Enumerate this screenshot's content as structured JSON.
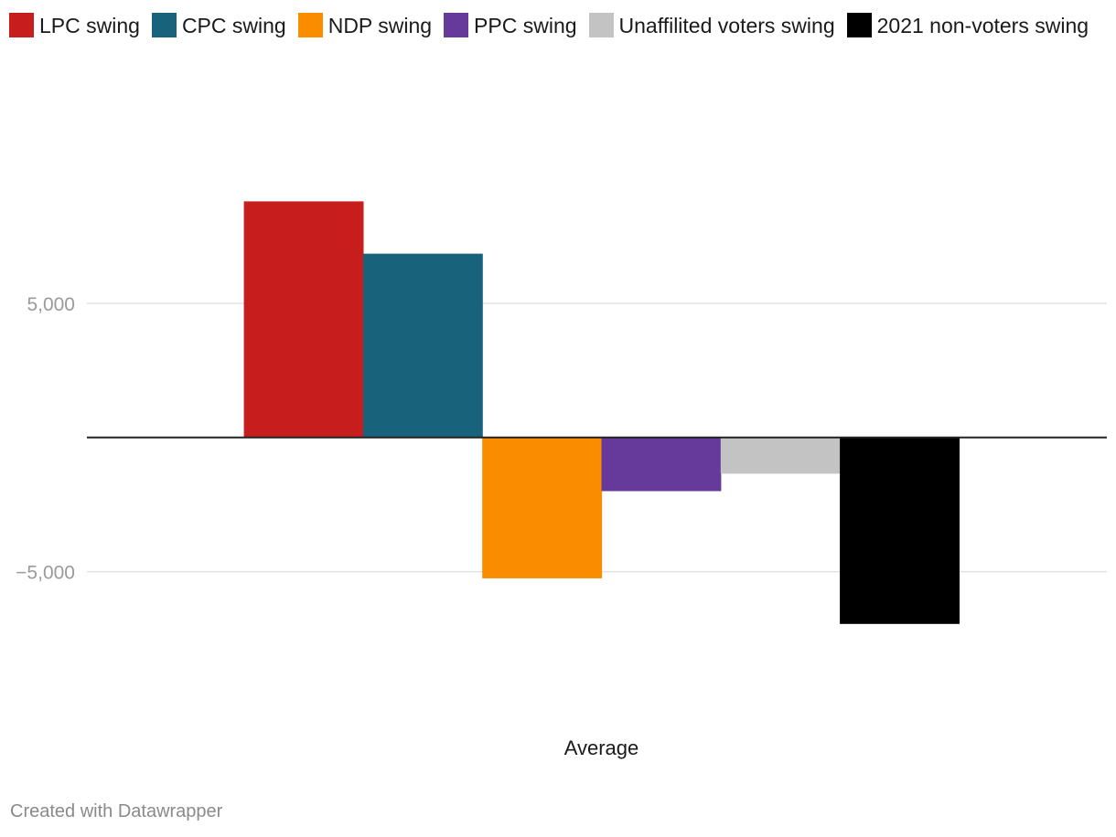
{
  "chart_data": {
    "type": "bar",
    "title": "",
    "categories": [
      "Average"
    ],
    "series": [
      {
        "name": "LPC swing",
        "color": "#c71e1d",
        "values": [
          8800
        ]
      },
      {
        "name": "CPC swing",
        "color": "#18627b",
        "values": [
          6850
        ]
      },
      {
        "name": "NDP swing",
        "color": "#fa8c00",
        "values": [
          -5250
        ]
      },
      {
        "name": "PPC swing",
        "color": "#653a9b",
        "values": [
          -2000
        ]
      },
      {
        "name": "Unaffilited voters swing",
        "color": "#c3c3c3",
        "values": [
          -1350
        ]
      },
      {
        "name": "2021 non-voters swing",
        "color": "#000000",
        "values": [
          -6950
        ]
      }
    ],
    "y_ticks": [
      {
        "value": 5000,
        "label": "5,000"
      },
      {
        "value": -5000,
        "label": "−5,000"
      }
    ],
    "ylim": [
      -10600,
      12900
    ],
    "xlabel": "",
    "ylabel": "",
    "legend_position": "top",
    "grid": true
  },
  "footer": {
    "credit": "Created with Datawrapper"
  }
}
